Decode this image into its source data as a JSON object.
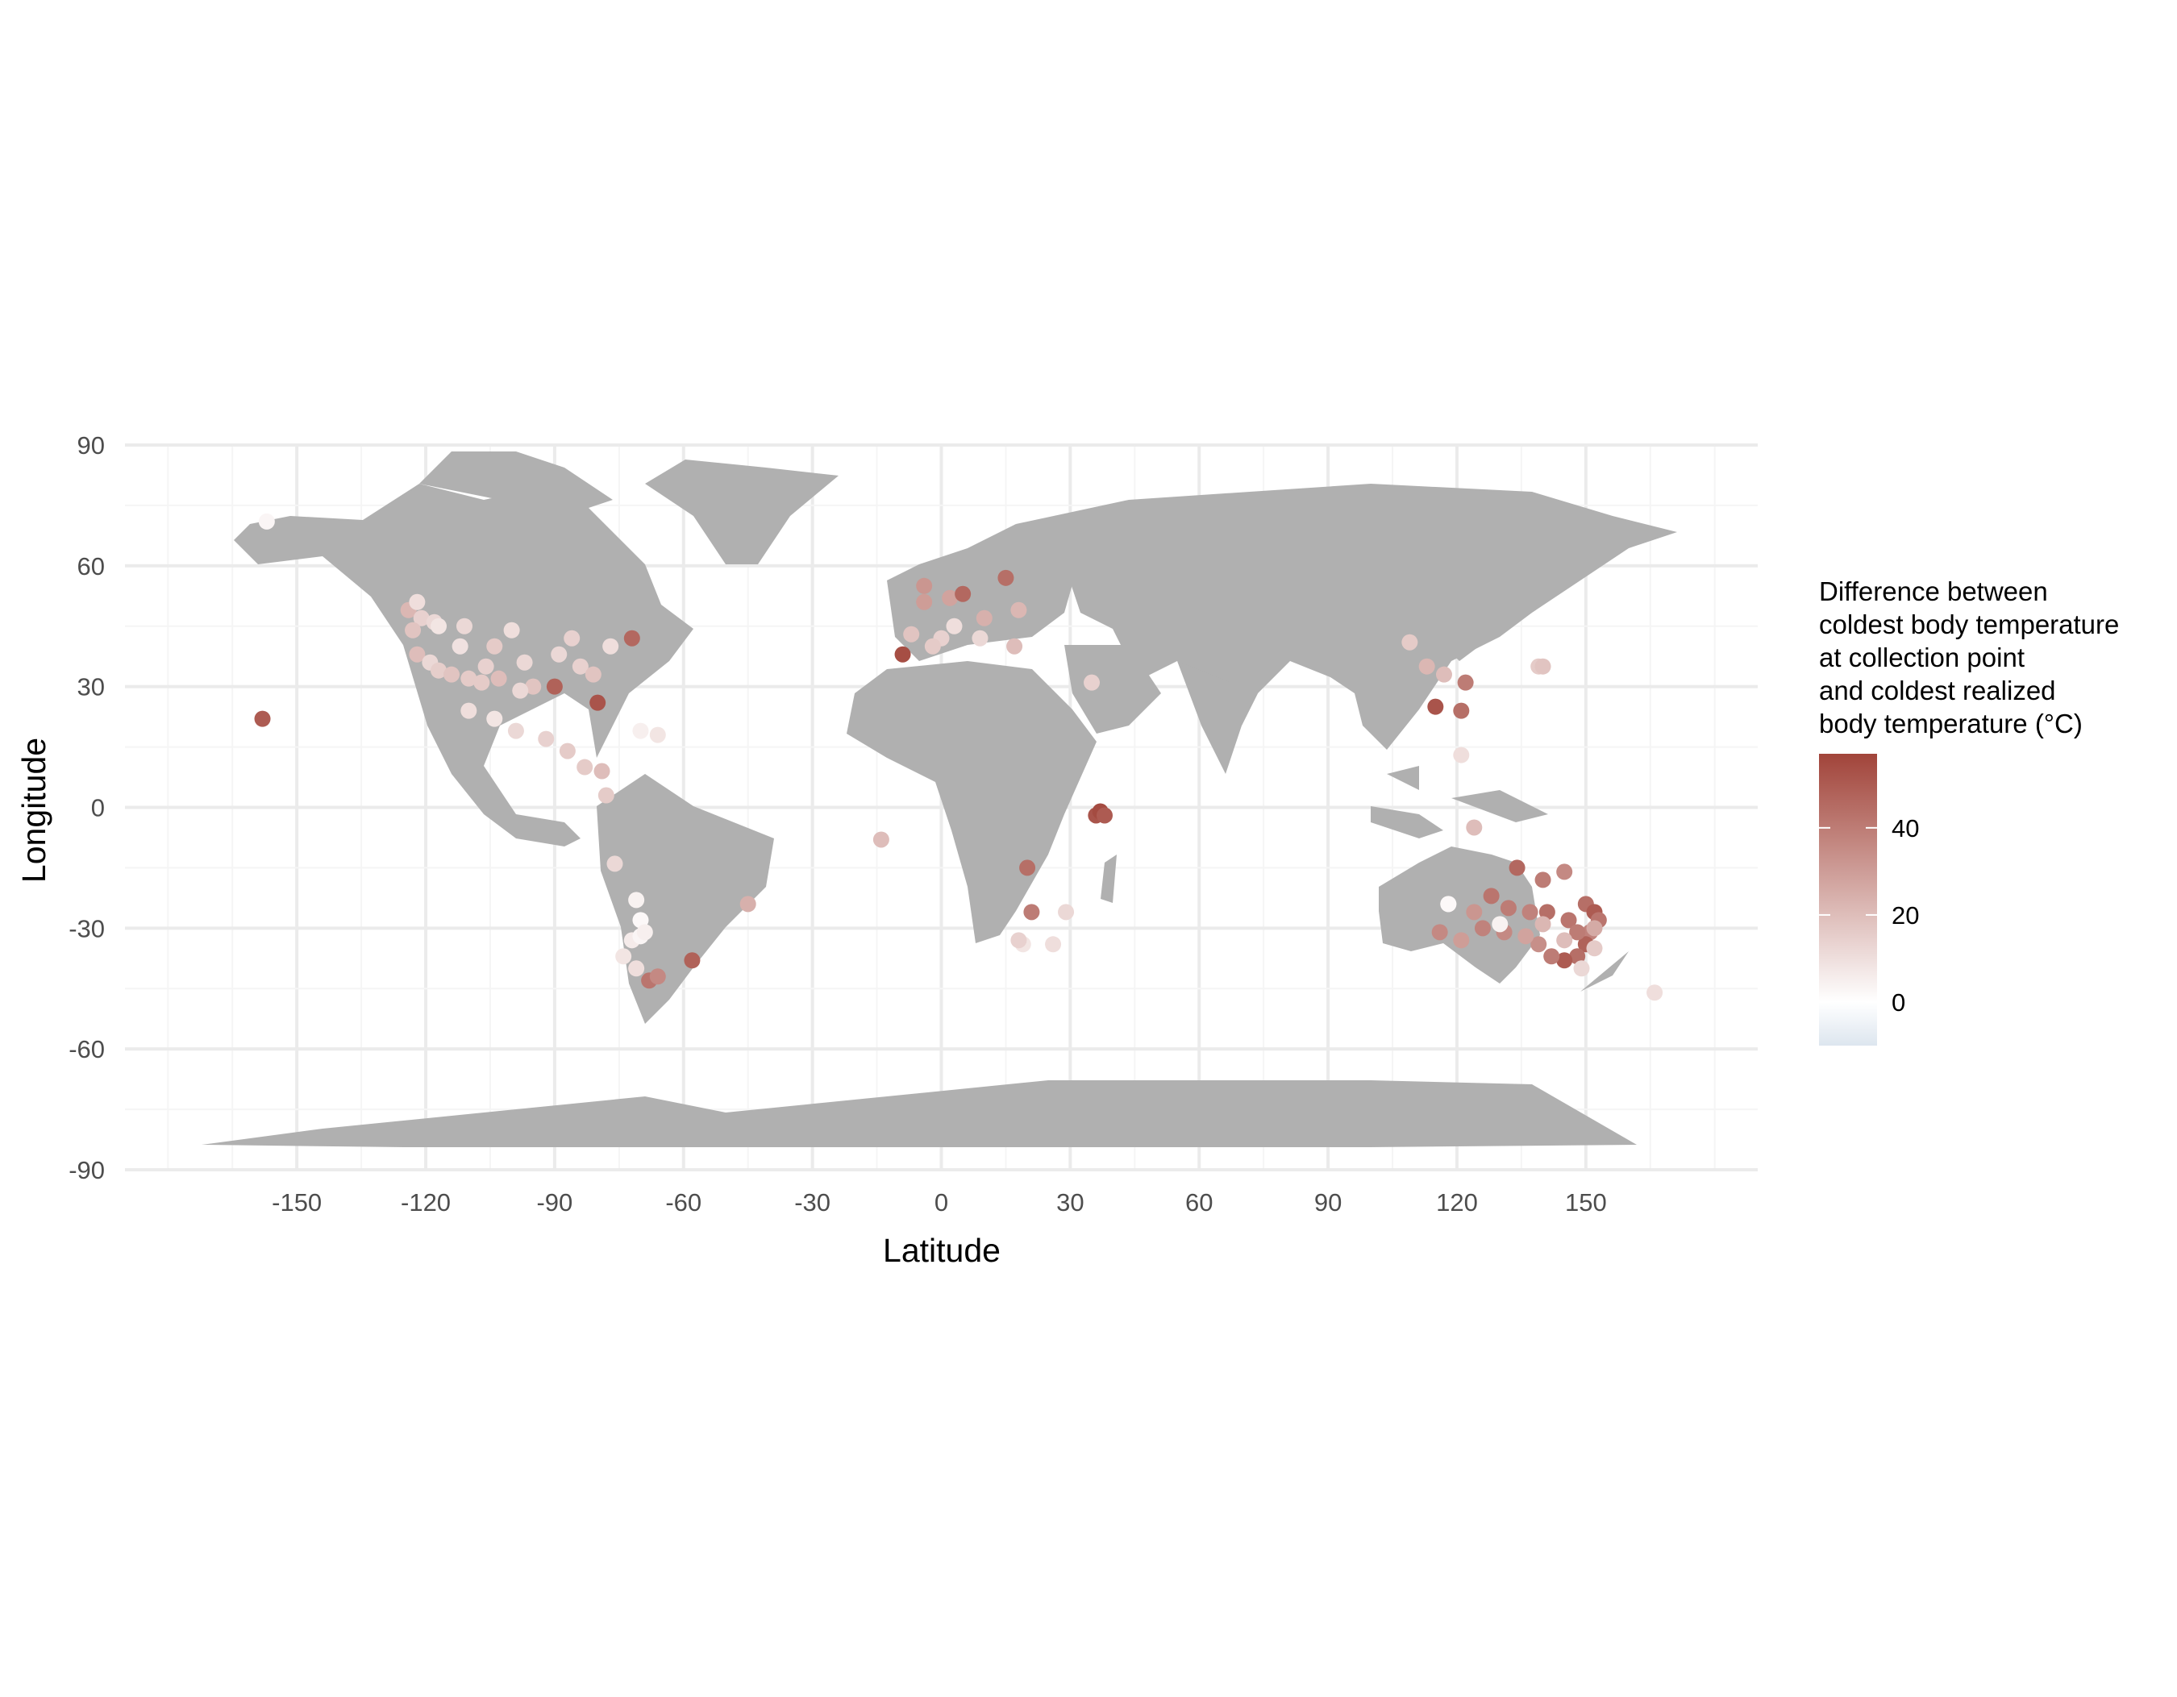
{
  "chart_data": {
    "type": "scatter",
    "title": "",
    "xlabel": "Latitude",
    "ylabel": "Longitude",
    "xlim": [
      -190,
      190
    ],
    "ylim": [
      -90,
      90
    ],
    "x_ticks": [
      -150,
      -120,
      -90,
      -60,
      -30,
      0,
      30,
      60,
      90,
      120,
      150
    ],
    "x_tick_labels": [
      "-150",
      "-120",
      "-90",
      "-60",
      "-30",
      "0",
      "30",
      "60",
      "90",
      "120",
      "150"
    ],
    "y_ticks": [
      90,
      60,
      30,
      0,
      -30,
      -60,
      -90
    ],
    "y_tick_labels": [
      "90",
      "60",
      "30",
      "0",
      "-30",
      "-60",
      "-90"
    ],
    "grid": true,
    "basemap": "world land outlines (grey)",
    "legend": {
      "title_lines": [
        "Difference between",
        "coldest body temperature",
        "at collection point",
        "and coldest realized",
        "body temperature (°C)"
      ],
      "position": "right",
      "ticks": [
        40,
        20,
        0
      ],
      "tick_labels": [
        "40",
        "20",
        "0"
      ],
      "range": [
        -10,
        57
      ],
      "colors": {
        "low": "#dde6ef",
        "mid": "#ffffff",
        "high": "#a1443a"
      }
    },
    "colors": {
      "land": "#b0b0b0",
      "grid_major": "#ebebeb",
      "grid_minor": "#f5f5f5",
      "background": "#ffffff"
    },
    "points": [
      [
        -157,
        71,
        3
      ],
      [
        -158,
        22,
        50
      ],
      [
        -124,
        49,
        22
      ],
      [
        -122,
        51,
        10
      ],
      [
        -121,
        47,
        14
      ],
      [
        -123,
        44,
        18
      ],
      [
        -118,
        46,
        12
      ],
      [
        -117,
        45,
        8
      ],
      [
        -122,
        38,
        20
      ],
      [
        -119,
        36,
        12
      ],
      [
        -117,
        34,
        15
      ],
      [
        -114,
        33,
        18
      ],
      [
        -110,
        32,
        16
      ],
      [
        -106,
        35,
        14
      ],
      [
        -104,
        40,
        16
      ],
      [
        -112,
        40,
        9
      ],
      [
        -111,
        45,
        12
      ],
      [
        -100,
        44,
        10
      ],
      [
        -97,
        36,
        12
      ],
      [
        -95,
        30,
        18
      ],
      [
        -89,
        38,
        12
      ],
      [
        -84,
        35,
        14
      ],
      [
        -81,
        33,
        18
      ],
      [
        -77,
        40,
        10
      ],
      [
        -72,
        42,
        46
      ],
      [
        -80,
        26,
        52
      ],
      [
        -86,
        42,
        14
      ],
      [
        -90,
        30,
        48
      ],
      [
        -98,
        29,
        12
      ],
      [
        -103,
        32,
        20
      ],
      [
        -107,
        31,
        16
      ],
      [
        -110,
        24,
        10
      ],
      [
        -104,
        22,
        8
      ],
      [
        -99,
        19,
        12
      ],
      [
        -92,
        17,
        14
      ],
      [
        -87,
        14,
        16
      ],
      [
        -83,
        10,
        16
      ],
      [
        -79,
        9,
        20
      ],
      [
        -78,
        3,
        16
      ],
      [
        -70,
        19,
        5
      ],
      [
        -66,
        18,
        8
      ],
      [
        -76,
        -14,
        12
      ],
      [
        -71,
        -23,
        4
      ],
      [
        -70,
        -28,
        2
      ],
      [
        -72,
        -33,
        6
      ],
      [
        -74,
        -37,
        8
      ],
      [
        -71,
        -40,
        10
      ],
      [
        -68,
        -43,
        42
      ],
      [
        -66,
        -42,
        36
      ],
      [
        -58,
        -38,
        48
      ],
      [
        -45,
        -24,
        24
      ],
      [
        -70,
        -32,
        3
      ],
      [
        -69,
        -31,
        5
      ],
      [
        -9,
        38,
        54
      ],
      [
        -7,
        43,
        18
      ],
      [
        -4,
        55,
        32
      ],
      [
        -4,
        51,
        30
      ],
      [
        2,
        52,
        28
      ],
      [
        5,
        53,
        46
      ],
      [
        10,
        47,
        24
      ],
      [
        15,
        57,
        44
      ],
      [
        18,
        49,
        22
      ],
      [
        0,
        42,
        14
      ],
      [
        -2,
        40,
        16
      ],
      [
        3,
        45,
        10
      ],
      [
        9,
        42,
        12
      ],
      [
        17,
        40,
        20
      ],
      [
        35,
        31,
        14
      ],
      [
        -14,
        -8,
        20
      ],
      [
        20,
        -15,
        44
      ],
      [
        21,
        -26,
        40
      ],
      [
        19,
        -34,
        8
      ],
      [
        18,
        -33,
        14
      ],
      [
        26,
        -34,
        10
      ],
      [
        29,
        -26,
        12
      ],
      [
        36,
        -2,
        52
      ],
      [
        37,
        -1,
        55
      ],
      [
        38,
        -2,
        50
      ],
      [
        109,
        41,
        16
      ],
      [
        113,
        35,
        22
      ],
      [
        117,
        33,
        20
      ],
      [
        115,
        25,
        52
      ],
      [
        121,
        24,
        44
      ],
      [
        122,
        31,
        40
      ],
      [
        121,
        13,
        10
      ],
      [
        124,
        -5,
        20
      ],
      [
        139,
        35,
        16
      ],
      [
        140,
        35,
        18
      ],
      [
        128,
        -22,
        42
      ],
      [
        134,
        -15,
        46
      ],
      [
        140,
        -18,
        40
      ],
      [
        145,
        -16,
        36
      ],
      [
        150,
        -24,
        44
      ],
      [
        152,
        -26,
        50
      ],
      [
        153,
        -28,
        42
      ],
      [
        151,
        -31,
        38
      ],
      [
        150,
        -34,
        48
      ],
      [
        148,
        -37,
        44
      ],
      [
        145,
        -38,
        50
      ],
      [
        142,
        -37,
        40
      ],
      [
        139,
        -34,
        34
      ],
      [
        136,
        -32,
        28
      ],
      [
        131,
        -31,
        36
      ],
      [
        126,
        -30,
        38
      ],
      [
        121,
        -33,
        30
      ],
      [
        116,
        -31,
        36
      ],
      [
        118,
        -24,
        4
      ],
      [
        124,
        -26,
        32
      ],
      [
        132,
        -25,
        40
      ],
      [
        137,
        -26,
        38
      ],
      [
        141,
        -26,
        44
      ],
      [
        146,
        -28,
        42
      ],
      [
        148,
        -31,
        40
      ],
      [
        152,
        -30,
        26
      ],
      [
        149,
        -40,
        12
      ],
      [
        166,
        -46,
        10
      ],
      [
        118,
        -24,
        2
      ],
      [
        130,
        -29,
        4
      ],
      [
        140,
        -29,
        22
      ],
      [
        145,
        -33,
        20
      ],
      [
        152,
        -35,
        16
      ]
    ]
  }
}
